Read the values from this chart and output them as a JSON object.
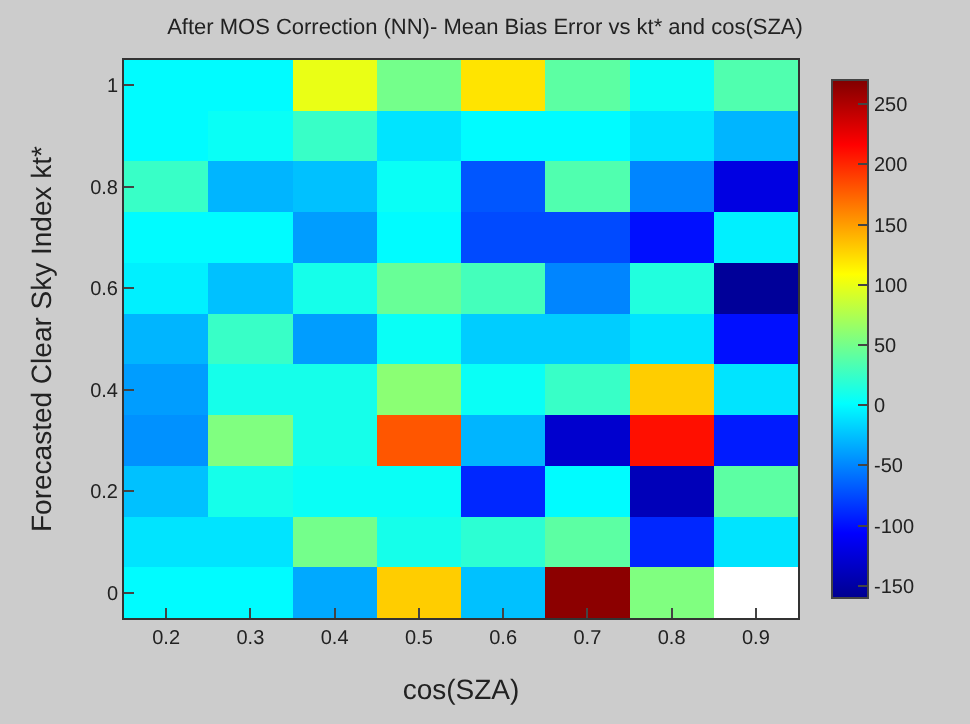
{
  "chart_data": {
    "type": "heatmap",
    "title": "After MOS Correction (NN)- Mean Bias Error vs kt* and cos(SZA)",
    "xlabel": "cos(SZA)",
    "ylabel": "Forecasted Clear Sky Index kt*",
    "categories": [
      "0.2",
      "0.3",
      "0.4",
      "0.5",
      "0.6",
      "0.7",
      "0.8",
      "0.9"
    ],
    "y_categories": [
      "1",
      null,
      "0.8",
      null,
      "0.6",
      null,
      "0.4",
      null,
      "0.2",
      null,
      "0"
    ],
    "cells": [
      [
        0,
        0,
        100,
        50,
        120,
        40,
        5,
        35
      ],
      [
        0,
        5,
        25,
        -10,
        0,
        0,
        -10,
        -30
      ],
      [
        25,
        -30,
        -25,
        5,
        -70,
        35,
        -50,
        -120
      ],
      [
        0,
        0,
        -40,
        0,
        -75,
        -75,
        -100,
        -5
      ],
      [
        -5,
        -25,
        10,
        45,
        30,
        -50,
        15,
        -155
      ],
      [
        -30,
        25,
        -40,
        5,
        -20,
        -20,
        -10,
        -100
      ],
      [
        -40,
        10,
        10,
        60,
        5,
        25,
        130,
        -10
      ],
      [
        -45,
        55,
        10,
        180,
        -30,
        -130,
        210,
        -95
      ],
      [
        -25,
        10,
        5,
        5,
        -90,
        0,
        -140,
        40
      ],
      [
        -10,
        -10,
        50,
        10,
        20,
        40,
        -90,
        -10
      ],
      [
        0,
        0,
        -35,
        130,
        -25,
        265,
        55,
        null
      ]
    ],
    "clim": [
      -160,
      270
    ],
    "cticks": [
      -150,
      -100,
      -50,
      0,
      50,
      100,
      150,
      200,
      250
    ]
  }
}
